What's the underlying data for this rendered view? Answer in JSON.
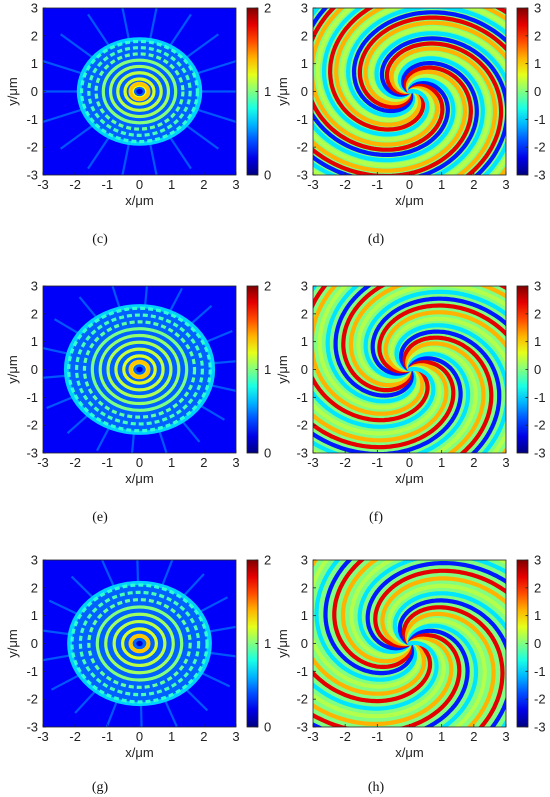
{
  "chart_data": [
    {
      "type": "heatmap",
      "panel": "(c)",
      "quantity": "intensity",
      "xlabel": "x/μm",
      "ylabel": "y/μm",
      "xlim": [
        -3,
        3
      ],
      "ylim": [
        -3,
        3
      ],
      "xticks": [
        -3,
        -2,
        -1,
        0,
        1,
        2,
        3
      ],
      "yticks": [
        -3,
        -2,
        -1,
        0,
        1,
        2,
        3
      ],
      "colorbar": {
        "min": 0,
        "max": 2,
        "ticks": [
          0,
          1,
          2
        ],
        "colormap": "jet"
      },
      "pattern": {
        "rings": 8,
        "outer_radius": 1.8
      }
    },
    {
      "type": "heatmap",
      "panel": "(d)",
      "quantity": "phase",
      "xlabel": "x/μm",
      "ylabel": "y/μm",
      "xlim": [
        -3,
        3
      ],
      "ylim": [
        -3,
        3
      ],
      "xticks": [
        -3,
        -2,
        -1,
        0,
        1,
        2,
        3
      ],
      "yticks": [
        -3,
        -2,
        -1,
        0,
        1,
        2,
        3
      ],
      "colorbar": {
        "min": -3,
        "max": 3,
        "ticks": [
          -3,
          -2,
          -1,
          0,
          1,
          2,
          3
        ],
        "colormap": "jet"
      },
      "pattern": {
        "spiral_arms": 3,
        "spatial_period": 0.55
      }
    },
    {
      "type": "heatmap",
      "panel": "(e)",
      "quantity": "intensity",
      "xlabel": "x/μm",
      "ylabel": "y/μm",
      "xlim": [
        -3,
        3
      ],
      "ylim": [
        -3,
        3
      ],
      "xticks": [
        -3,
        -2,
        -1,
        0,
        1,
        2,
        3
      ],
      "yticks": [
        -3,
        -2,
        -1,
        0,
        1,
        2,
        3
      ],
      "colorbar": {
        "min": 0,
        "max": 2,
        "ticks": [
          0,
          1,
          2
        ],
        "colormap": "jet"
      },
      "pattern": {
        "rings": 9,
        "outer_radius": 2.2
      }
    },
    {
      "type": "heatmap",
      "panel": "(f)",
      "quantity": "phase",
      "xlabel": "x/μm",
      "ylabel": "y/μm",
      "xlim": [
        -3,
        3
      ],
      "ylim": [
        -3,
        3
      ],
      "xticks": [
        -3,
        -2,
        -1,
        0,
        1,
        2,
        3
      ],
      "yticks": [
        -3,
        -2,
        -1,
        0,
        1,
        2,
        3
      ],
      "colorbar": {
        "min": -3,
        "max": 3,
        "ticks": [
          -3,
          -2,
          -1,
          0,
          1,
          2,
          3
        ],
        "colormap": "jet"
      },
      "pattern": {
        "spiral_arms": 4,
        "spatial_period": 0.55
      }
    },
    {
      "type": "heatmap",
      "panel": "(g)",
      "quantity": "intensity",
      "xlabel": "x/μm",
      "ylabel": "y/μm",
      "xlim": [
        -3,
        3
      ],
      "ylim": [
        -3,
        3
      ],
      "xticks": [
        -3,
        -2,
        -1,
        0,
        1,
        2,
        3
      ],
      "yticks": [
        -3,
        -2,
        -1,
        0,
        1,
        2,
        3
      ],
      "colorbar": {
        "min": 0,
        "max": 2,
        "ticks": [
          0,
          1,
          2
        ],
        "colormap": "jet"
      },
      "pattern": {
        "rings": 8,
        "outer_radius": 2.1
      }
    },
    {
      "type": "heatmap",
      "panel": "(h)",
      "quantity": "phase",
      "xlabel": "x/μm",
      "ylabel": "y/μm",
      "xlim": [
        -3,
        3
      ],
      "ylim": [
        -3,
        3
      ],
      "xticks": [
        -3,
        -2,
        -1,
        0,
        1,
        2,
        3
      ],
      "yticks": [
        -3,
        -2,
        -1,
        0,
        1,
        2,
        3
      ],
      "colorbar": {
        "min": -3,
        "max": 3,
        "ticks": [
          -3,
          -2,
          -1,
          0,
          1,
          2,
          3
        ],
        "colormap": "jet"
      },
      "pattern": {
        "spiral_arms": 5,
        "spatial_period": 0.5
      }
    }
  ]
}
